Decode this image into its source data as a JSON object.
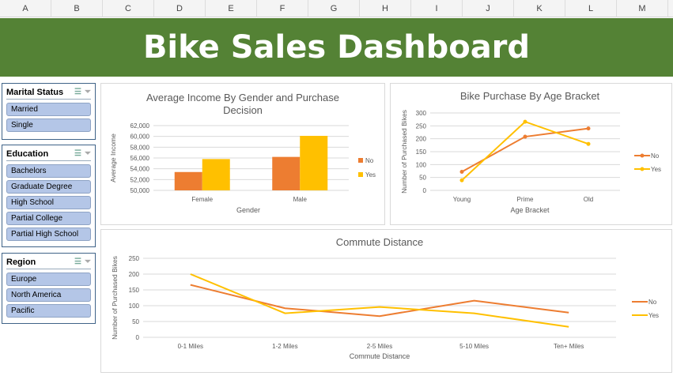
{
  "columns": [
    "A",
    "B",
    "C",
    "D",
    "E",
    "F",
    "G",
    "H",
    "I",
    "J",
    "K",
    "L",
    "M"
  ],
  "title": "Bike Sales Dashboard",
  "colors": {
    "banner": "#548235",
    "no": "#ed7d31",
    "yes": "#ffc000",
    "slicer_item": "#b4c6e7"
  },
  "slicers": [
    {
      "title": "Marital Status",
      "items": [
        "Married",
        "Single"
      ],
      "icons": [
        "multi-select-icon",
        "clear-filter-icon"
      ]
    },
    {
      "title": "Education",
      "items": [
        "Bachelors",
        "Graduate Degree",
        "High School",
        "Partial College",
        "Partial High School"
      ],
      "icons": [
        "multi-select-icon",
        "clear-filter-icon"
      ]
    },
    {
      "title": "Region",
      "items": [
        "Europe",
        "North America",
        "Pacific"
      ],
      "icons": [
        "multi-select-icon",
        "clear-filter-icon"
      ]
    }
  ],
  "chart_data": [
    {
      "type": "bar",
      "title": "Average Income By Gender and Purchase Decision",
      "title_lines": [
        "Average Income By Gender and Purchase",
        "Decision"
      ],
      "xlabel": "Gender",
      "ylabel": "Average Income",
      "categories": [
        "Female",
        "Male"
      ],
      "series": [
        {
          "name": "No",
          "values": [
            53400,
            56200
          ]
        },
        {
          "name": "Yes",
          "values": [
            55800,
            60100
          ]
        }
      ],
      "ylim": [
        50000,
        62000
      ],
      "yticks": [
        "50,000",
        "52,000",
        "54,000",
        "56,000",
        "58,000",
        "60,000",
        "62,000"
      ],
      "grid": true,
      "legend": "right"
    },
    {
      "type": "line",
      "title": "Bike Purchase By Age Bracket",
      "xlabel": "Age Bracket",
      "ylabel": "Number of Purchased Bikes",
      "categories": [
        "Young",
        "Prime",
        "Old"
      ],
      "series": [
        {
          "name": "No",
          "values": [
            72,
            208,
            240
          ]
        },
        {
          "name": "Yes",
          "values": [
            39,
            266,
            180
          ]
        }
      ],
      "ylim": [
        0,
        300
      ],
      "yticks": [
        "0",
        "50",
        "100",
        "150",
        "200",
        "250",
        "300"
      ],
      "grid": true,
      "legend": "right",
      "markers": true
    },
    {
      "type": "line",
      "title": "Commute Distance",
      "xlabel": "Commute Distance",
      "ylabel": "Number of Purchased Bikes",
      "categories": [
        "0-1 Miles",
        "1-2 Miles",
        "2-5 Miles",
        "5-10 Miles",
        "Ten+ Miles"
      ],
      "series": [
        {
          "name": "No",
          "values": [
            166,
            92,
            67,
            116,
            78
          ]
        },
        {
          "name": "Yes",
          "values": [
            200,
            76,
            96,
            76,
            33
          ]
        }
      ],
      "ylim": [
        0,
        250
      ],
      "yticks": [
        "0",
        "50",
        "100",
        "150",
        "200",
        "250"
      ],
      "grid": true,
      "legend": "right",
      "markers": false
    }
  ]
}
